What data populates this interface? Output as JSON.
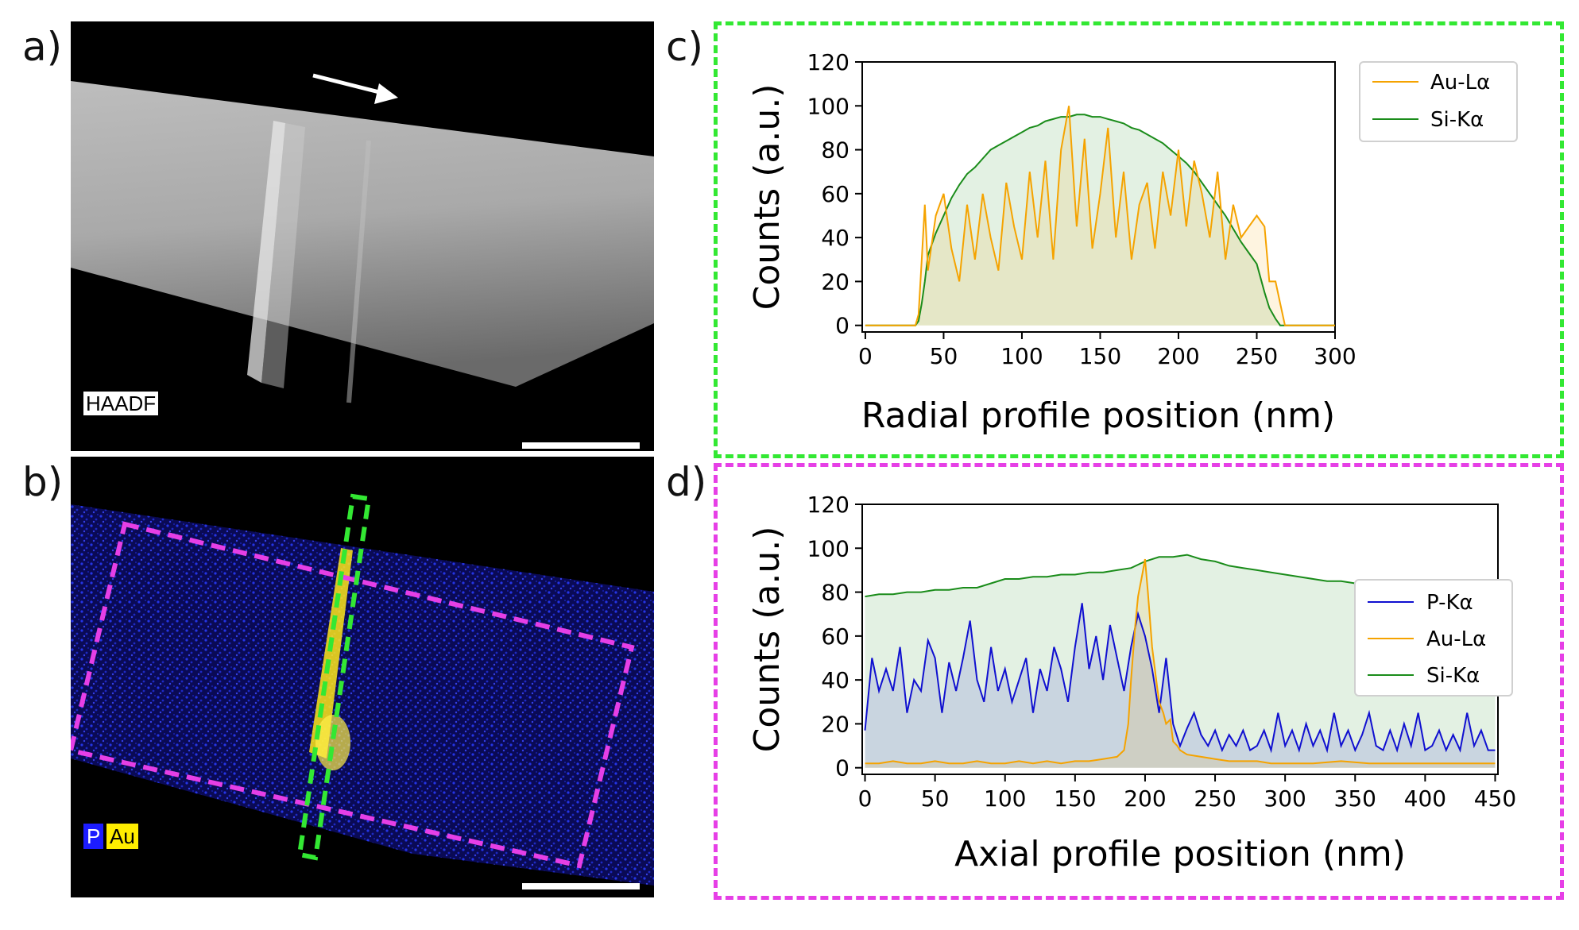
{
  "panels": {
    "a": "a)",
    "b": "b)",
    "c": "c)",
    "d": "d)"
  },
  "micrograph_a": {
    "label": "HAADF"
  },
  "micrograph_b": {
    "legend": [
      "P",
      "Au"
    ]
  },
  "colors": {
    "green_frame": "#33e833",
    "magenta_frame": "#e63fe6",
    "au": "#f5a300",
    "si": "#1a8c1a",
    "p": "#1010d0"
  },
  "chart_data": [
    {
      "id": "c",
      "type": "line",
      "xlabel": "Radial profile position (nm)",
      "ylabel": "Counts (a.u.)",
      "xlim": [
        -2,
        300
      ],
      "ylim": [
        -3,
        120
      ],
      "xticks": [
        0,
        50,
        100,
        150,
        200,
        250,
        300
      ],
      "yticks": [
        0,
        20,
        40,
        60,
        80,
        100,
        120
      ],
      "legend_position": "top-right",
      "series": [
        {
          "name": "Au-Lα",
          "color": "#f5a300",
          "x": [
            0,
            5,
            10,
            15,
            20,
            25,
            30,
            32,
            34,
            36,
            38,
            40,
            45,
            50,
            55,
            60,
            65,
            70,
            75,
            80,
            85,
            90,
            95,
            100,
            105,
            110,
            115,
            120,
            125,
            130,
            135,
            140,
            145,
            150,
            155,
            160,
            165,
            170,
            175,
            180,
            185,
            190,
            195,
            200,
            205,
            210,
            215,
            220,
            225,
            230,
            235,
            240,
            245,
            250,
            255,
            258,
            262,
            265,
            268,
            270,
            280,
            290,
            300
          ],
          "y": [
            0,
            0,
            0,
            0,
            0,
            0,
            0,
            0,
            5,
            30,
            55,
            25,
            50,
            60,
            35,
            20,
            55,
            30,
            60,
            40,
            25,
            65,
            45,
            30,
            70,
            40,
            75,
            30,
            80,
            100,
            45,
            85,
            35,
            60,
            90,
            40,
            70,
            30,
            55,
            65,
            35,
            70,
            50,
            80,
            45,
            75,
            60,
            40,
            70,
            30,
            55,
            40,
            45,
            50,
            45,
            20,
            20,
            10,
            0,
            0,
            0,
            0,
            0
          ]
        },
        {
          "name": "Si-Kα",
          "color": "#1a8c1a",
          "x": [
            0,
            5,
            10,
            15,
            20,
            25,
            30,
            32,
            34,
            36,
            38,
            40,
            45,
            50,
            55,
            60,
            65,
            70,
            75,
            80,
            85,
            90,
            95,
            100,
            105,
            110,
            115,
            120,
            125,
            130,
            135,
            140,
            145,
            150,
            155,
            160,
            165,
            170,
            175,
            180,
            185,
            190,
            195,
            200,
            205,
            210,
            215,
            220,
            225,
            230,
            235,
            240,
            245,
            250,
            255,
            258,
            262,
            265,
            268,
            270,
            280,
            290,
            300
          ],
          "y": [
            0,
            0,
            0,
            0,
            0,
            0,
            0,
            0,
            2,
            10,
            20,
            32,
            42,
            50,
            58,
            64,
            69,
            72,
            76,
            80,
            82,
            84,
            86,
            88,
            90,
            91,
            93,
            94,
            95,
            95,
            96,
            96,
            95,
            95,
            94,
            93,
            92,
            90,
            89,
            87,
            85,
            83,
            80,
            77,
            74,
            70,
            65,
            60,
            55,
            50,
            44,
            38,
            33,
            28,
            15,
            8,
            3,
            0,
            0,
            0,
            0,
            0,
            0
          ]
        }
      ]
    },
    {
      "id": "d",
      "type": "line",
      "xlabel": "Axial profile position (nm)",
      "ylabel": "Counts (a.u.)",
      "xlim": [
        -2,
        452
      ],
      "ylim": [
        -3,
        120
      ],
      "xticks": [
        0,
        50,
        100,
        150,
        200,
        250,
        300,
        350,
        400,
        450
      ],
      "yticks": [
        0,
        20,
        40,
        60,
        80,
        100,
        120
      ],
      "legend_position": "right",
      "series": [
        {
          "name": "P-Kα",
          "color": "#1010d0",
          "x": [
            0,
            5,
            10,
            15,
            20,
            25,
            30,
            35,
            40,
            45,
            50,
            55,
            60,
            65,
            70,
            75,
            80,
            85,
            90,
            95,
            100,
            105,
            110,
            115,
            120,
            125,
            130,
            135,
            140,
            145,
            150,
            155,
            160,
            165,
            170,
            175,
            180,
            185,
            190,
            195,
            200,
            205,
            210,
            215,
            220,
            225,
            230,
            235,
            240,
            245,
            250,
            255,
            260,
            265,
            270,
            275,
            280,
            285,
            290,
            295,
            300,
            305,
            310,
            315,
            320,
            325,
            330,
            335,
            340,
            345,
            350,
            355,
            360,
            365,
            370,
            375,
            380,
            385,
            390,
            395,
            400,
            405,
            410,
            415,
            420,
            425,
            430,
            435,
            440,
            445,
            450
          ],
          "y": [
            17,
            50,
            35,
            45,
            35,
            55,
            25,
            40,
            35,
            58,
            50,
            25,
            48,
            35,
            50,
            67,
            40,
            30,
            55,
            35,
            45,
            30,
            40,
            50,
            25,
            45,
            35,
            55,
            45,
            30,
            55,
            75,
            45,
            60,
            40,
            65,
            50,
            35,
            55,
            70,
            60,
            45,
            25,
            50,
            20,
            10,
            18,
            25,
            15,
            10,
            17,
            8,
            15,
            10,
            17,
            8,
            10,
            17,
            8,
            25,
            10,
            17,
            8,
            20,
            10,
            17,
            8,
            25,
            10,
            17,
            8,
            15,
            25,
            10,
            8,
            17,
            8,
            20,
            10,
            25,
            8,
            10,
            17,
            8,
            15,
            8,
            25,
            10,
            17,
            8,
            8
          ]
        },
        {
          "name": "Au-Lα",
          "color": "#f5a300",
          "x": [
            0,
            10,
            20,
            30,
            40,
            50,
            60,
            70,
            80,
            90,
            100,
            110,
            120,
            130,
            140,
            150,
            160,
            170,
            180,
            185,
            188,
            190,
            193,
            195,
            198,
            200,
            202,
            205,
            208,
            210,
            213,
            215,
            218,
            220,
            223,
            225,
            230,
            240,
            250,
            260,
            270,
            280,
            290,
            300,
            320,
            340,
            360,
            380,
            400,
            420,
            440,
            450
          ],
          "y": [
            2,
            2,
            3,
            2,
            2,
            3,
            2,
            2,
            3,
            2,
            2,
            3,
            2,
            3,
            2,
            3,
            3,
            4,
            5,
            8,
            20,
            40,
            65,
            78,
            88,
            95,
            80,
            55,
            40,
            30,
            25,
            20,
            22,
            12,
            10,
            8,
            6,
            5,
            4,
            3,
            3,
            3,
            2,
            2,
            2,
            3,
            2,
            2,
            2,
            2,
            2,
            2
          ]
        },
        {
          "name": "Si-Kα",
          "color": "#1a8c1a",
          "x": [
            0,
            10,
            20,
            30,
            40,
            50,
            60,
            70,
            80,
            90,
            100,
            110,
            120,
            130,
            140,
            150,
            160,
            170,
            180,
            190,
            200,
            210,
            220,
            230,
            240,
            250,
            260,
            270,
            280,
            290,
            300,
            310,
            320,
            330,
            340,
            350,
            360,
            370,
            380,
            390,
            400,
            410,
            420,
            430,
            440,
            450
          ],
          "y": [
            78,
            79,
            79,
            80,
            80,
            81,
            81,
            82,
            82,
            84,
            86,
            86,
            87,
            87,
            88,
            88,
            89,
            89,
            90,
            91,
            94,
            96,
            96,
            97,
            95,
            94,
            92,
            91,
            90,
            89,
            88,
            87,
            86,
            85,
            85,
            84,
            84,
            83,
            83,
            82,
            82,
            82,
            81,
            81,
            81,
            80
          ]
        }
      ]
    }
  ]
}
